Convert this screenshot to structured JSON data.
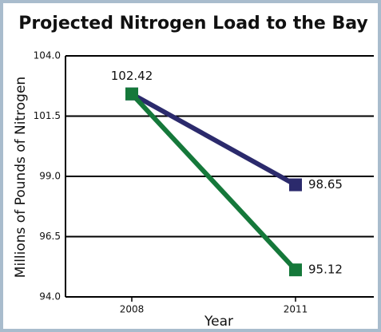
{
  "chart_data": {
    "type": "line",
    "title": "Projected Nitrogen Load to the Bay",
    "x_label": "Year",
    "y_label": "Millions of Pounds of Nitrogen",
    "categories": [
      "2008",
      "2011"
    ],
    "series": [
      {
        "color": "#2b2a6c",
        "values": [
          102.42,
          98.65
        ]
      },
      {
        "color": "#15783a",
        "values": [
          102.42,
          95.12
        ]
      }
    ],
    "ylim": [
      94,
      104
    ],
    "yticks": [
      {
        "value": 94,
        "label": "94.0"
      },
      96.5,
      {
        "value": 99,
        "label": "99.0"
      },
      101.5,
      {
        "value": 104,
        "label": "104.0"
      }
    ],
    "grid": true
  }
}
